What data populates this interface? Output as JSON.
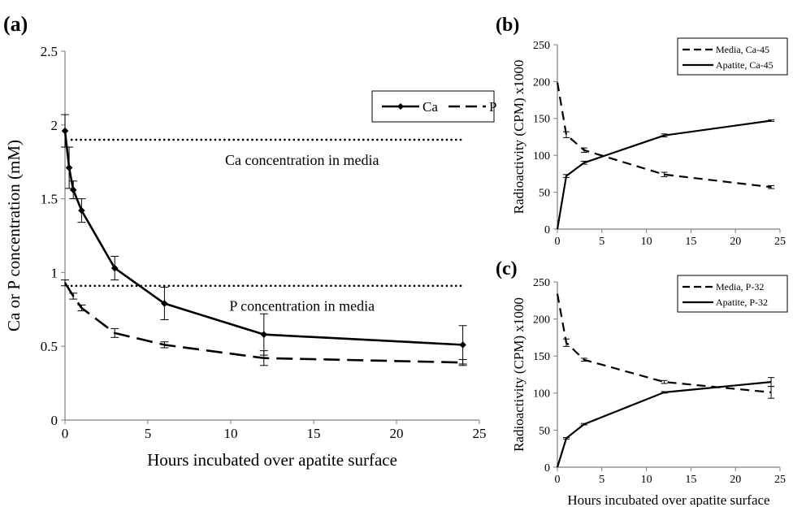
{
  "chart_data": [
    {
      "panel": "(a)",
      "type": "line",
      "xlabel": "Hours incubated over apatite surface",
      "ylabel": "Ca or P concentration (mM)",
      "xlim": [
        0,
        25
      ],
      "ylim": [
        0,
        2.5
      ],
      "xticks": [
        0,
        5,
        10,
        15,
        20,
        25
      ],
      "yticks": [
        0,
        0.5,
        1,
        1.5,
        2,
        2.5
      ],
      "ytick_labels": [
        "0",
        "0.5",
        "1",
        "1.5",
        "2",
        "2.5"
      ],
      "legend_position": "top-right",
      "grid": false,
      "series": [
        {
          "name": "Ca",
          "style": "solid-diamond",
          "x": [
            0,
            0.25,
            0.5,
            1,
            3,
            6,
            12,
            24
          ],
          "y": [
            1.96,
            1.71,
            1.56,
            1.42,
            1.03,
            0.79,
            0.58,
            0.51
          ],
          "err": [
            0.11,
            0.14,
            0.06,
            0.08,
            0.08,
            0.11,
            0.14,
            0.13
          ]
        },
        {
          "name": "P",
          "style": "long-dash",
          "x": [
            0,
            0.5,
            1,
            3,
            6,
            12,
            24
          ],
          "y": [
            0.93,
            0.84,
            0.76,
            0.59,
            0.51,
            0.42,
            0.39
          ],
          "err": [
            0.02,
            0.02,
            0.02,
            0.03,
            0.02,
            0.05,
            0.02
          ]
        }
      ],
      "reference_lines": [
        {
          "y": 1.9,
          "label": "Ca concentration in media"
        },
        {
          "y": 0.91,
          "label": "P concentration in media"
        }
      ]
    },
    {
      "panel": "(b)",
      "type": "line",
      "xlabel": "",
      "ylabel": "Radioactivity (CPM) x1000",
      "xlim": [
        0,
        25
      ],
      "ylim": [
        0,
        250
      ],
      "xticks": [
        0,
        5,
        10,
        15,
        20,
        25
      ],
      "yticks": [
        0,
        50,
        100,
        150,
        200,
        250
      ],
      "legend_position": "top-right",
      "grid": false,
      "series": [
        {
          "name": "Media, Ca-45",
          "style": "dash",
          "x": [
            0,
            1,
            3,
            12,
            24
          ],
          "y": [
            199,
            128,
            107,
            74,
            57
          ],
          "err": [
            0,
            4,
            3,
            3,
            2
          ]
        },
        {
          "name": "Apatite, Ca-45",
          "style": "solid",
          "x": [
            0,
            1,
            3,
            12,
            24
          ],
          "y": [
            0,
            72,
            90,
            127,
            147
          ],
          "err": [
            0,
            2,
            2,
            2,
            1
          ]
        }
      ]
    },
    {
      "panel": "(c)",
      "type": "line",
      "xlabel": "Hours incubated over apatite surface",
      "ylabel": "Radioactivity (CPM) x1000",
      "xlim": [
        0,
        25
      ],
      "ylim": [
        0,
        250
      ],
      "xticks": [
        0,
        5,
        10,
        15,
        20,
        25
      ],
      "yticks": [
        0,
        50,
        100,
        150,
        200,
        250
      ],
      "legend_position": "top-right",
      "grid": false,
      "series": [
        {
          "name": "Media, P-32",
          "style": "dash",
          "x": [
            0,
            1,
            3,
            12,
            24
          ],
          "y": [
            234,
            168,
            145,
            115,
            101
          ],
          "err": [
            0,
            5,
            2,
            2,
            8
          ]
        },
        {
          "name": "Apatite, P-32",
          "style": "solid",
          "x": [
            0,
            1,
            3,
            12,
            24
          ],
          "y": [
            0,
            39,
            58,
            101,
            115
          ],
          "err": [
            0,
            1,
            1,
            1,
            6
          ]
        }
      ]
    }
  ]
}
